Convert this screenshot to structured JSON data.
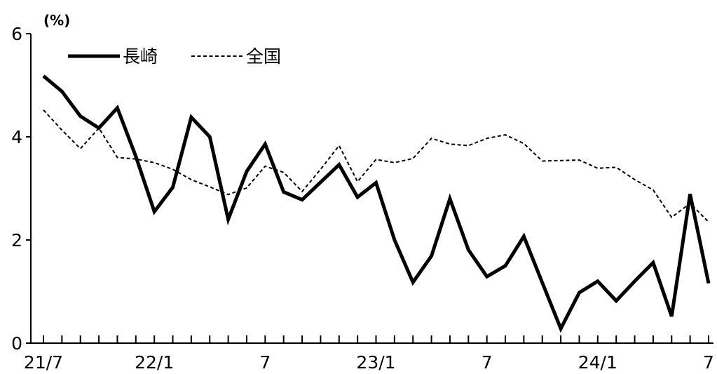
{
  "chart_data": {
    "type": "line",
    "unit_label": "(%)",
    "x": [
      "21/7",
      "21/8",
      "21/9",
      "21/10",
      "21/11",
      "21/12",
      "22/1",
      "22/2",
      "22/3",
      "22/4",
      "22/5",
      "22/6",
      "22/7",
      "22/8",
      "22/9",
      "22/10",
      "22/11",
      "22/12",
      "23/1",
      "23/2",
      "23/3",
      "23/4",
      "23/5",
      "23/6",
      "23/7",
      "23/8",
      "23/9",
      "23/10",
      "23/11",
      "23/12",
      "24/1",
      "24/2",
      "24/3",
      "24/4",
      "24/5",
      "24/6",
      "24/7"
    ],
    "x_tick_labels": [
      {
        "index": 0,
        "label": "21/7"
      },
      {
        "index": 6,
        "label": "22/1"
      },
      {
        "index": 12,
        "label": "7"
      },
      {
        "index": 18,
        "label": "23/1"
      },
      {
        "index": 24,
        "label": "7"
      },
      {
        "index": 30,
        "label": "24/1"
      },
      {
        "index": 36,
        "label": "7"
      }
    ],
    "y_ticks": [
      "0",
      "2",
      "4",
      "6"
    ],
    "ylim": [
      0,
      6
    ],
    "grid": false,
    "legend_position": "top-left",
    "series": [
      {
        "name": "長崎",
        "color": "#000000",
        "style": "solid",
        "values": [
          5.18,
          4.88,
          4.4,
          4.17,
          4.56,
          3.62,
          2.55,
          3.02,
          4.38,
          4.0,
          2.4,
          3.33,
          3.86,
          2.93,
          2.78,
          3.12,
          3.46,
          2.83,
          3.11,
          2.0,
          1.18,
          1.69,
          2.8,
          1.81,
          1.29,
          1.5,
          2.07,
          1.17,
          0.28,
          0.98,
          1.2,
          0.82,
          1.2,
          1.56,
          0.52,
          2.89,
          1.16
        ]
      },
      {
        "name": "全国",
        "color": "#000000",
        "style": "dashed",
        "values": [
          4.52,
          4.13,
          3.77,
          4.17,
          3.6,
          3.57,
          3.5,
          3.37,
          3.17,
          3.03,
          2.88,
          3.01,
          3.43,
          3.31,
          2.94,
          3.37,
          3.83,
          3.13,
          3.56,
          3.5,
          3.58,
          3.97,
          3.86,
          3.83,
          3.97,
          4.04,
          3.87,
          3.53,
          3.54,
          3.55,
          3.39,
          3.41,
          3.17,
          2.97,
          2.44,
          2.71,
          2.35
        ]
      }
    ]
  }
}
